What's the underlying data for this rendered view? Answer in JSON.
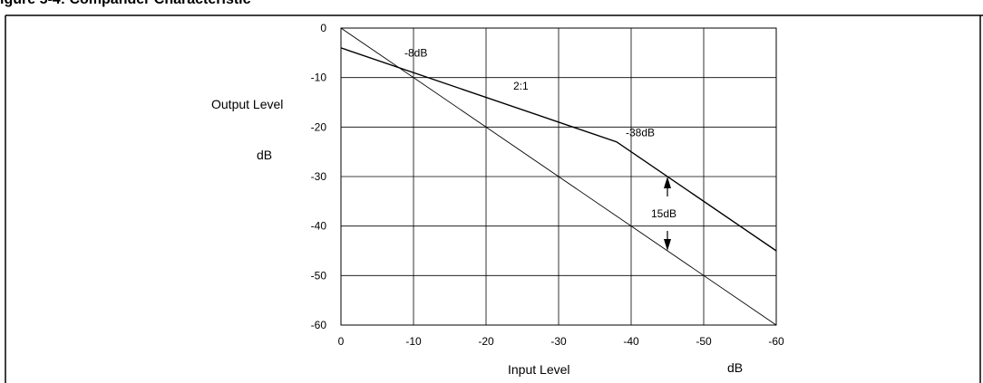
{
  "figure_title": "igure 5-4: Compander Characteristic",
  "chart_data": {
    "type": "line",
    "title": "",
    "xlabel": "Input Level",
    "xunit": "dB",
    "ylabel": "Output Level",
    "yunit": "dB",
    "x_ticks": [
      "0",
      "-10",
      "-20",
      "-30",
      "-40",
      "-50",
      "-60"
    ],
    "y_ticks": [
      "0",
      "-10",
      "-20",
      "-30",
      "-40",
      "-50",
      "-60"
    ],
    "xlim": [
      0,
      -60
    ],
    "ylim": [
      0,
      -60
    ],
    "grid": true,
    "series": [
      {
        "name": "",
        "points": [
          [
            0,
            0
          ],
          [
            -60,
            -60
          ]
        ]
      },
      {
        "name": "",
        "points": [
          [
            0,
            -4
          ],
          [
            -38,
            -23
          ],
          [
            -60,
            -45
          ]
        ]
      }
    ],
    "annotations": [
      {
        "text": "-8dB",
        "x": -8,
        "y": -8
      },
      {
        "text": "2:1",
        "x": -23,
        "y": -13.5
      },
      {
        "text": "-38dB",
        "x": -38,
        "y": -23
      },
      {
        "text": "15dB",
        "x": -45,
        "y": -37.5
      }
    ],
    "arrow": {
      "x": -45,
      "from_y": -30,
      "to_y": -45
    }
  }
}
